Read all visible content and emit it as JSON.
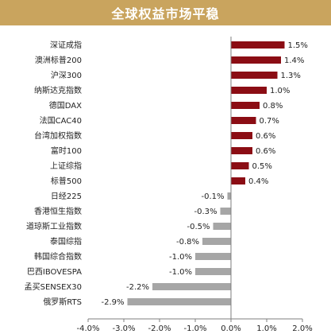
{
  "title": "全球权益市场平稳",
  "colors": {
    "banner": "#c9a45e",
    "positive": "#8b0d14",
    "negative": "#a6a6a6",
    "axis": "#7f7f7f"
  },
  "chart_data": {
    "type": "bar",
    "orientation": "horizontal",
    "title": "全球权益市场平稳",
    "xlabel": "",
    "ylabel": "",
    "xlim": [
      -4.0,
      2.0
    ],
    "x_ticks": [
      "-4.0%",
      "-3.0%",
      "-2.0%",
      "-1.0%",
      "0.0%",
      "1.0%",
      "2.0%"
    ],
    "grid": false,
    "legend": "none",
    "categories": [
      "深证成指",
      "澳洲标普200",
      "沪深300",
      "纳斯达克指数",
      "德国DAX",
      "法国CAC40",
      "台湾加权指数",
      "富时100",
      "上证综指",
      "标普500",
      "日经225",
      "香港恒生指数",
      "道琼斯工业指数",
      "泰国综指",
      "韩国综合指数",
      "巴西IBOVESPA",
      "孟买SENSEX30",
      "俄罗斯RTS"
    ],
    "values": [
      1.5,
      1.4,
      1.3,
      1.0,
      0.8,
      0.7,
      0.6,
      0.6,
      0.5,
      0.4,
      -0.1,
      -0.3,
      -0.5,
      -0.8,
      -1.0,
      -1.0,
      -2.2,
      -2.9
    ],
    "value_labels": [
      "1.5%",
      "1.4%",
      "1.3%",
      "1.0%",
      "0.8%",
      "0.7%",
      "0.6%",
      "0.6%",
      "0.5%",
      "0.4%",
      "-0.1%",
      "-0.3%",
      "-0.5%",
      "-0.8%",
      "-1.0%",
      "-1.0%",
      "-2.2%",
      "-2.9%"
    ]
  }
}
